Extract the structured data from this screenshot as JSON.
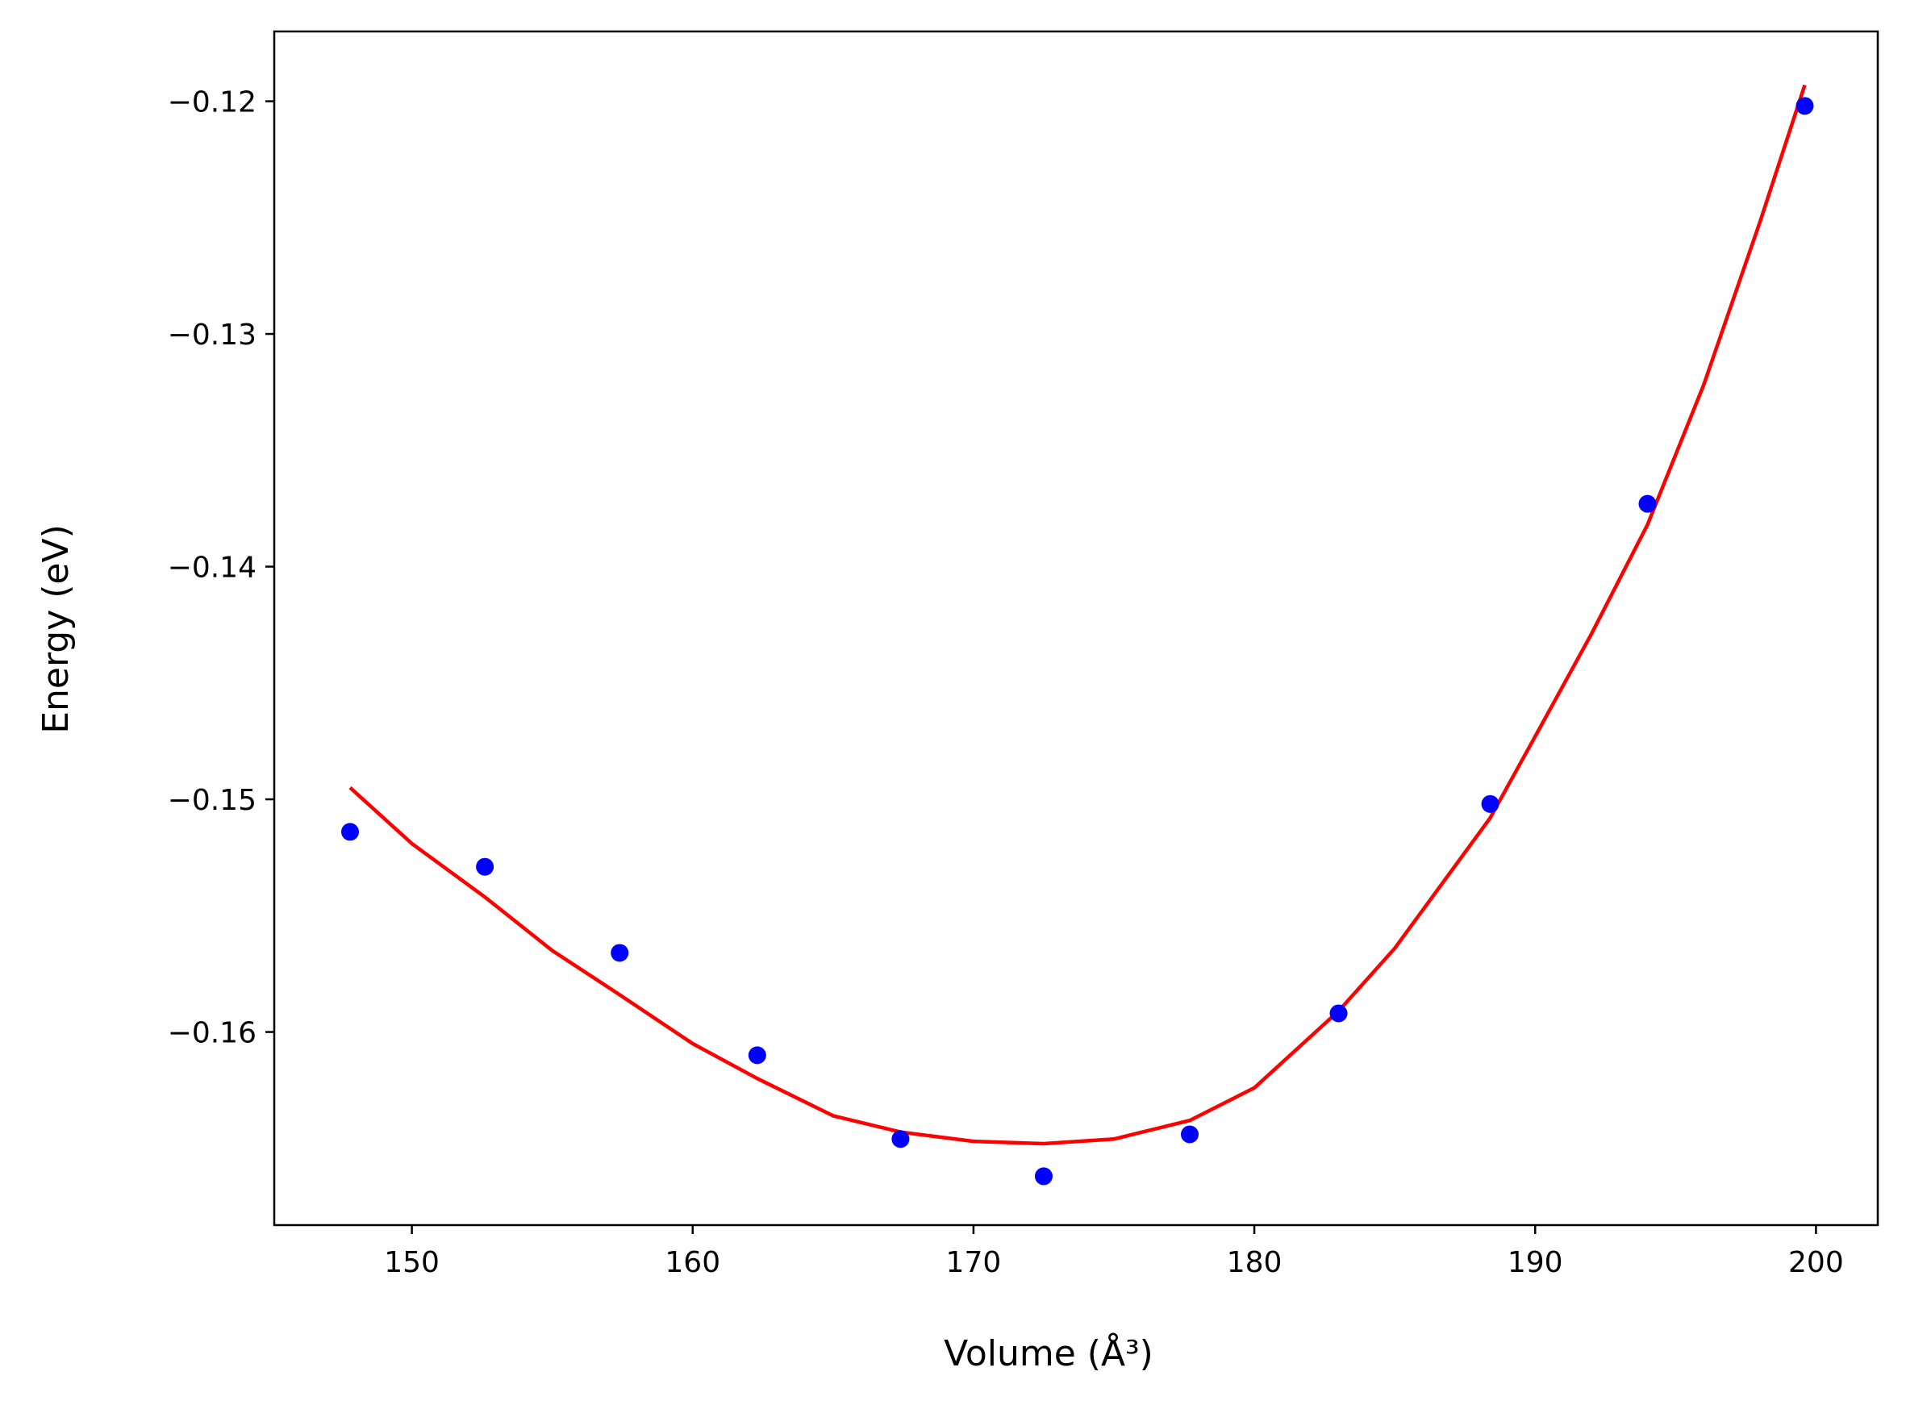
{
  "chart_data": {
    "type": "scatter",
    "xlabel": "Volume (Å³)",
    "ylabel": "Energy (eV)",
    "xlim": [
      145.1,
      202.2
    ],
    "ylim": [
      -0.1683,
      -0.117
    ],
    "x_ticks": [
      150,
      160,
      170,
      180,
      190,
      200
    ],
    "x_tick_labels": [
      "150",
      "160",
      "170",
      "180",
      "190",
      "200"
    ],
    "y_ticks": [
      -0.16,
      -0.15,
      -0.14,
      -0.13,
      -0.12
    ],
    "y_tick_labels": [
      "−0.16",
      "−0.15",
      "−0.14",
      "−0.13",
      "−0.12"
    ],
    "grid": false,
    "series": [
      {
        "kind": "scatter",
        "color": "#0000ff",
        "x": [
          147.8,
          152.6,
          157.4,
          162.3,
          167.4,
          172.5,
          177.7,
          183.0,
          188.4,
          194.0,
          199.6
        ],
        "y": [
          -0.1514,
          -0.1529,
          -0.1566,
          -0.161,
          -0.1646,
          -0.1662,
          -0.1644,
          -0.1592,
          -0.1502,
          -0.1373,
          -0.1202
        ]
      },
      {
        "kind": "line",
        "color": "#ff0000",
        "x": [
          147.8,
          150,
          152.6,
          155,
          157.4,
          160,
          162.3,
          165,
          167.4,
          170,
          172.5,
          175,
          177.7,
          180,
          183.0,
          185,
          188.4,
          190,
          192,
          194.0,
          196,
          198,
          199.6
        ],
        "y": [
          -0.1495,
          -0.1519,
          -0.1542,
          -0.1565,
          -0.1584,
          -0.1605,
          -0.162,
          -0.1636,
          -0.1643,
          -0.1647,
          -0.1648,
          -0.1646,
          -0.1638,
          -0.1624,
          -0.1591,
          -0.1564,
          -0.1508,
          -0.1473,
          -0.1429,
          -0.1382,
          -0.1322,
          -0.1252,
          -0.1193
        ]
      }
    ]
  }
}
